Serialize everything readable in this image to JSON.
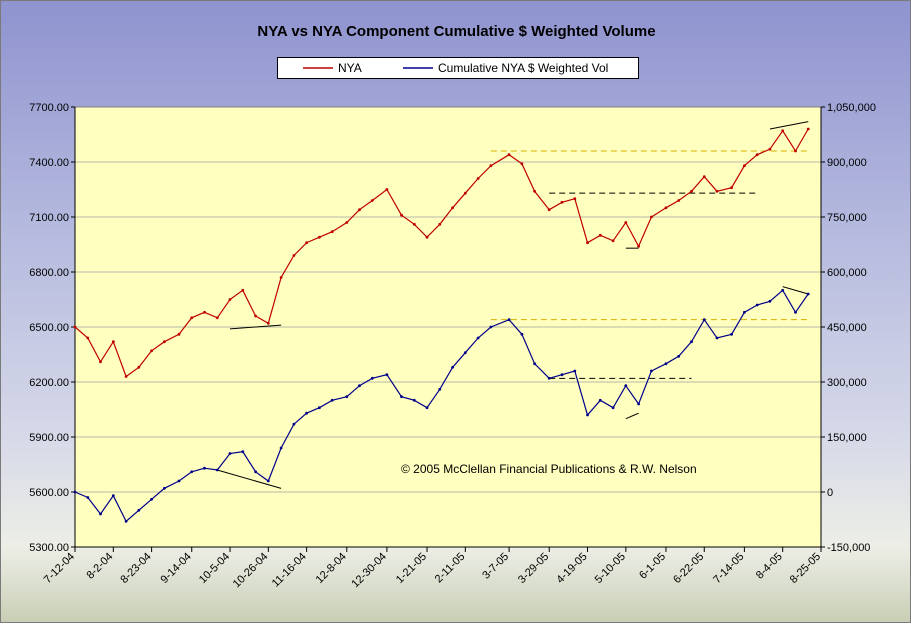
{
  "chart_data": {
    "type": "line",
    "title": "NYA vs NYA Component Cumulative $ Weighted Volume",
    "legend_placement": "top-center",
    "series": [
      {
        "name": "NYA",
        "axis": "left",
        "color": "#c00000",
        "points": [
          [
            "7-12-04",
            6500
          ],
          [
            "7-19-04",
            6440
          ],
          [
            "7-26-04",
            6310
          ],
          [
            "8-2-04",
            6420
          ],
          [
            "8-9-04",
            6230
          ],
          [
            "8-16-04",
            6280
          ],
          [
            "8-23-04",
            6370
          ],
          [
            "8-30-04",
            6420
          ],
          [
            "9-7-04",
            6460
          ],
          [
            "9-14-04",
            6550
          ],
          [
            "9-21-04",
            6580
          ],
          [
            "9-28-04",
            6550
          ],
          [
            "10-5-04",
            6650
          ],
          [
            "10-12-04",
            6700
          ],
          [
            "10-19-04",
            6560
          ],
          [
            "10-26-04",
            6520
          ],
          [
            "11-2-04",
            6770
          ],
          [
            "11-9-04",
            6890
          ],
          [
            "11-16-04",
            6960
          ],
          [
            "11-23-04",
            6990
          ],
          [
            "11-30-04",
            7020
          ],
          [
            "12-8-04",
            7070
          ],
          [
            "12-15-04",
            7140
          ],
          [
            "12-22-04",
            7190
          ],
          [
            "12-30-04",
            7250
          ],
          [
            "1-7-05",
            7110
          ],
          [
            "1-14-05",
            7060
          ],
          [
            "1-21-05",
            6990
          ],
          [
            "1-28-05",
            7060
          ],
          [
            "2-4-05",
            7150
          ],
          [
            "2-11-05",
            7230
          ],
          [
            "2-18-05",
            7310
          ],
          [
            "2-25-05",
            7380
          ],
          [
            "3-7-05",
            7440
          ],
          [
            "3-14-05",
            7390
          ],
          [
            "3-21-05",
            7240
          ],
          [
            "3-29-05",
            7140
          ],
          [
            "4-5-05",
            7180
          ],
          [
            "4-12-05",
            7200
          ],
          [
            "4-19-05",
            6960
          ],
          [
            "4-26-05",
            7000
          ],
          [
            "5-3-05",
            6970
          ],
          [
            "5-10-05",
            7070
          ],
          [
            "5-17-05",
            6940
          ],
          [
            "5-24-05",
            7100
          ],
          [
            "6-1-05",
            7150
          ],
          [
            "6-8-05",
            7190
          ],
          [
            "6-15-05",
            7240
          ],
          [
            "6-22-05",
            7320
          ],
          [
            "6-29-05",
            7240
          ],
          [
            "7-7-05",
            7260
          ],
          [
            "7-14-05",
            7380
          ],
          [
            "7-21-05",
            7440
          ],
          [
            "7-28-05",
            7470
          ],
          [
            "8-4-05",
            7570
          ],
          [
            "8-11-05",
            7460
          ],
          [
            "8-18-05",
            7580
          ]
        ]
      },
      {
        "name": "Cumulative NYA $ Weighted Vol",
        "axis": "right",
        "color": "#00008b",
        "points": [
          [
            "7-12-04",
            0
          ],
          [
            "7-19-04",
            -15000
          ],
          [
            "7-26-04",
            -60000
          ],
          [
            "8-2-04",
            -10000
          ],
          [
            "8-9-04",
            -80000
          ],
          [
            "8-16-04",
            -50000
          ],
          [
            "8-23-04",
            -20000
          ],
          [
            "8-30-04",
            10000
          ],
          [
            "9-7-04",
            30000
          ],
          [
            "9-14-04",
            55000
          ],
          [
            "9-21-04",
            65000
          ],
          [
            "9-28-04",
            60000
          ],
          [
            "10-5-04",
            105000
          ],
          [
            "10-12-04",
            110000
          ],
          [
            "10-19-04",
            55000
          ],
          [
            "10-26-04",
            30000
          ],
          [
            "11-2-04",
            120000
          ],
          [
            "11-9-04",
            185000
          ],
          [
            "11-16-04",
            215000
          ],
          [
            "11-23-04",
            230000
          ],
          [
            "11-30-04",
            250000
          ],
          [
            "12-8-04",
            260000
          ],
          [
            "12-15-04",
            290000
          ],
          [
            "12-22-04",
            310000
          ],
          [
            "12-30-04",
            320000
          ],
          [
            "1-7-05",
            260000
          ],
          [
            "1-14-05",
            250000
          ],
          [
            "1-21-05",
            230000
          ],
          [
            "1-28-05",
            280000
          ],
          [
            "2-4-05",
            340000
          ],
          [
            "2-11-05",
            380000
          ],
          [
            "2-18-05",
            420000
          ],
          [
            "2-25-05",
            450000
          ],
          [
            "3-7-05",
            470000
          ],
          [
            "3-14-05",
            430000
          ],
          [
            "3-21-05",
            350000
          ],
          [
            "3-29-05",
            310000
          ],
          [
            "4-5-05",
            320000
          ],
          [
            "4-12-05",
            330000
          ],
          [
            "4-19-05",
            210000
          ],
          [
            "4-26-05",
            250000
          ],
          [
            "5-3-05",
            230000
          ],
          [
            "5-10-05",
            290000
          ],
          [
            "5-17-05",
            240000
          ],
          [
            "5-24-05",
            330000
          ],
          [
            "6-1-05",
            350000
          ],
          [
            "6-8-05",
            370000
          ],
          [
            "6-15-05",
            410000
          ],
          [
            "6-22-05",
            470000
          ],
          [
            "6-29-05",
            420000
          ],
          [
            "7-7-05",
            430000
          ],
          [
            "7-14-05",
            490000
          ],
          [
            "7-21-05",
            510000
          ],
          [
            "7-28-05",
            520000
          ],
          [
            "8-4-05",
            550000
          ],
          [
            "8-11-05",
            490000
          ],
          [
            "8-18-05",
            540000
          ]
        ]
      }
    ],
    "y_left": {
      "ylim": [
        5300,
        7700
      ],
      "ticks": [
        5300,
        5600,
        5900,
        6200,
        6500,
        6800,
        7100,
        7400,
        7700
      ],
      "tick_labels": [
        "5300.00",
        "5600.00",
        "5900.00",
        "6200.00",
        "6500.00",
        "6800.00",
        "7100.00",
        "7400.00",
        "7700.00"
      ]
    },
    "y_right": {
      "ylim": [
        -150000,
        1050000
      ],
      "ticks": [
        -150000,
        0,
        150000,
        300000,
        450000,
        600000,
        750000,
        900000,
        1050000
      ],
      "tick_labels": [
        "-150,000",
        "0",
        "150,000",
        "300,000",
        "450,000",
        "600,000",
        "750,000",
        "900,000",
        "1,050,000"
      ]
    },
    "x_tick_labels": [
      "7-12-04",
      "8-2-04",
      "8-23-04",
      "9-14-04",
      "10-5-04",
      "10-26-04",
      "11-16-04",
      "12-8-04",
      "12-30-04",
      "1-21-05",
      "2-11-05",
      "3-7-05",
      "3-29-05",
      "4-19-05",
      "5-10-05",
      "6-1-05",
      "6-22-05",
      "7-14-05",
      "8-4-05",
      "8-25-05"
    ],
    "grid": "horizontal",
    "annotations": {
      "copyright": "© 2005 McClellan Financial Publications & R.W. Nelson",
      "trendlines": [
        {
          "axis": "left",
          "from": [
            "10-5-04",
            6490
          ],
          "to": [
            "11-2-04",
            6510
          ],
          "color": "#000000",
          "style": "solid"
        },
        {
          "axis": "right",
          "from": [
            "9-28-04",
            60000
          ],
          "to": [
            "11-2-04",
            10000
          ],
          "color": "#000000",
          "style": "solid"
        },
        {
          "axis": "left",
          "from": [
            "5-10-05",
            6930
          ],
          "to": [
            "5-17-05",
            6930
          ],
          "color": "#000000",
          "style": "solid"
        },
        {
          "axis": "right",
          "from": [
            "5-10-05",
            200000
          ],
          "to": [
            "5-17-05",
            215000
          ],
          "color": "#000000",
          "style": "solid"
        },
        {
          "axis": "left",
          "from": [
            "7-28-05",
            7580
          ],
          "to": [
            "8-18-05",
            7620
          ],
          "color": "#000000",
          "style": "solid"
        },
        {
          "axis": "right",
          "from": [
            "8-4-05",
            560000
          ],
          "to": [
            "8-18-05",
            540000
          ],
          "color": "#000000",
          "style": "solid"
        },
        {
          "axis": "left",
          "from": [
            "3-29-05",
            7230
          ],
          "to": [
            "7-21-05",
            7230
          ],
          "color": "#000000",
          "style": "dashed"
        },
        {
          "axis": "right",
          "from": [
            "3-29-05",
            310000
          ],
          "to": [
            "6-15-05",
            310000
          ],
          "color": "#000000",
          "style": "dashed"
        },
        {
          "axis": "left",
          "from": [
            "2-25-05",
            7460
          ],
          "to": [
            "8-18-05",
            7460
          ],
          "color": "#d4b000",
          "style": "dashed"
        },
        {
          "axis": "right",
          "from": [
            "2-25-05",
            470000
          ],
          "to": [
            "8-18-05",
            470000
          ],
          "color": "#d4b000",
          "style": "dashed"
        }
      ]
    }
  }
}
